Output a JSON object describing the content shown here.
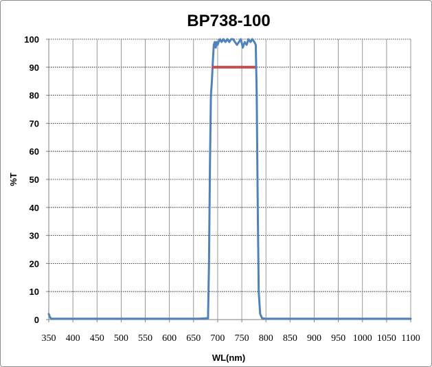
{
  "chart_data": {
    "type": "line",
    "title": "BP738-100",
    "xlabel": "WL(nm)",
    "ylabel": "%T",
    "xlim": [
      350,
      1100
    ],
    "ylim": [
      0,
      100
    ],
    "x_ticks": [
      350,
      400,
      450,
      500,
      550,
      600,
      650,
      700,
      750,
      800,
      850,
      900,
      950,
      1000,
      1050,
      1100
    ],
    "y_ticks": [
      0,
      10,
      20,
      30,
      40,
      50,
      60,
      70,
      80,
      90,
      100
    ],
    "grid": true,
    "colors": {
      "transmission": "#4f81bd",
      "reference": "#c0504d",
      "grid": "#000000"
    },
    "series": [
      {
        "type": "line",
        "color": "#4f81bd",
        "points": [
          [
            350,
            2
          ],
          [
            352,
            1
          ],
          [
            355,
            0.3
          ],
          [
            400,
            0.3
          ],
          [
            500,
            0.3
          ],
          [
            600,
            0.3
          ],
          [
            660,
            0.3
          ],
          [
            680,
            0.5
          ],
          [
            682,
            20
          ],
          [
            684,
            55
          ],
          [
            686,
            80
          ],
          [
            688,
            85
          ],
          [
            690,
            92
          ],
          [
            692,
            98
          ],
          [
            694,
            99
          ],
          [
            696,
            97
          ],
          [
            698,
            99
          ],
          [
            700,
            98
          ],
          [
            702,
            99
          ],
          [
            705,
            100
          ],
          [
            708,
            99
          ],
          [
            712,
            100
          ],
          [
            716,
            99
          ],
          [
            720,
            100
          ],
          [
            724,
            99
          ],
          [
            728,
            100
          ],
          [
            732,
            100
          ],
          [
            736,
            99
          ],
          [
            740,
            98
          ],
          [
            744,
            99
          ],
          [
            748,
            100
          ],
          [
            752,
            97
          ],
          [
            756,
            99
          ],
          [
            760,
            98
          ],
          [
            764,
            100
          ],
          [
            768,
            99
          ],
          [
            772,
            100
          ],
          [
            776,
            99
          ],
          [
            779,
            98
          ],
          [
            781,
            80
          ],
          [
            783,
            40
          ],
          [
            785,
            10
          ],
          [
            788,
            2
          ],
          [
            792,
            0.5
          ],
          [
            800,
            0.3
          ],
          [
            900,
            0.3
          ],
          [
            1000,
            0.3
          ],
          [
            1100,
            0.3
          ]
        ]
      },
      {
        "type": "line",
        "color": "#c0504d",
        "points": [
          [
            688,
            90
          ],
          [
            778,
            90
          ]
        ]
      }
    ]
  }
}
